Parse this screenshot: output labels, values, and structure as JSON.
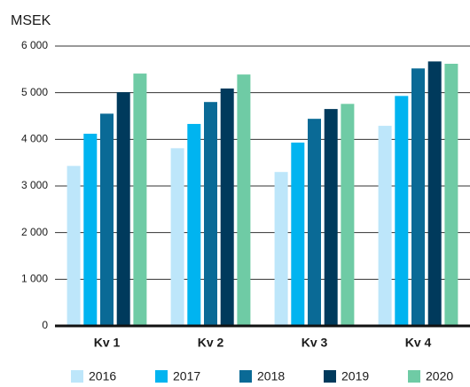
{
  "chart_data": {
    "type": "bar",
    "title": "MSEK",
    "categories": [
      "Kv 1",
      "Kv 2",
      "Kv 3",
      "Kv 4"
    ],
    "series": [
      {
        "name": "2016",
        "color": "#bde6fa",
        "values": [
          3430,
          3810,
          3300,
          4290
        ]
      },
      {
        "name": "2017",
        "color": "#00b4f0",
        "values": [
          4120,
          4330,
          3930,
          4930
        ]
      },
      {
        "name": "2018",
        "color": "#0a6a96",
        "values": [
          4550,
          4800,
          4440,
          5520
        ]
      },
      {
        "name": "2019",
        "color": "#003a5c",
        "values": [
          5010,
          5090,
          4650,
          5670
        ]
      },
      {
        "name": "2020",
        "color": "#6fcba5",
        "values": [
          5410,
          5390,
          4760,
          5620
        ]
      }
    ],
    "ylim": [
      0,
      6000
    ],
    "yticks": [
      0,
      {
        "value": 1000,
        "label": "1 000"
      },
      {
        "value": 2000,
        "label": "2 000"
      },
      {
        "value": 3000,
        "label": "3 000"
      },
      {
        "value": 4000,
        "label": "4 000"
      },
      {
        "value": 5000,
        "label": "5 000"
      },
      {
        "value": 6000,
        "label": "6 000"
      }
    ],
    "grid": true,
    "legend": "bottom"
  }
}
